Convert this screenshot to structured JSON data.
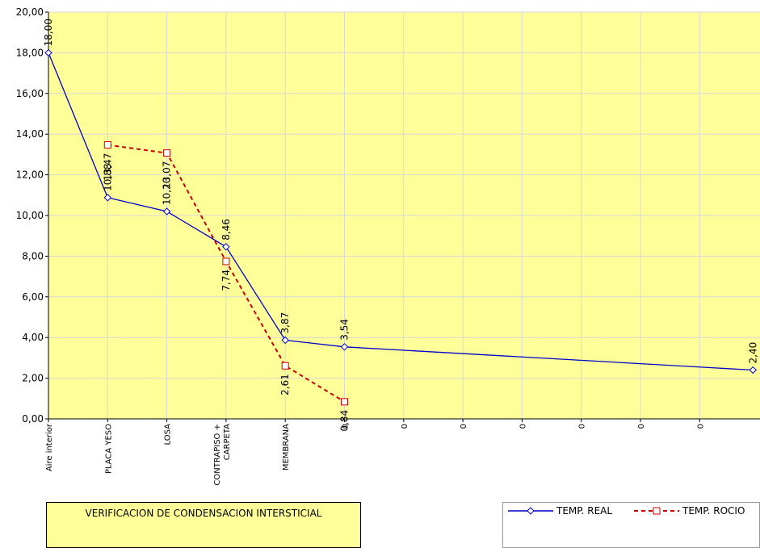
{
  "chart_data": {
    "type": "line",
    "title": "VERIFICACION DE CONDENSACION INTERSTICIAL",
    "ylim": [
      0,
      20
    ],
    "yticks": [
      "0,00",
      "2,00",
      "4,00",
      "6,00",
      "8,00",
      "10,00",
      "12,00",
      "14,00",
      "16,00",
      "18,00",
      "20,00"
    ],
    "categories": [
      "Aire interior",
      "PLACA YESO",
      "LOSA",
      "CONTRAPISO + CARPETA",
      "MEMBRANA",
      "0",
      "0",
      "0",
      "0",
      "0",
      "0",
      "0"
    ],
    "series": [
      {
        "name": "TEMP. REAL",
        "color": "#0000cc",
        "marker": "diamond",
        "dash": "solid",
        "points": [
          {
            "x": 0,
            "y": 18.0,
            "label": "18,00"
          },
          {
            "x": 1,
            "y": 10.88,
            "label": "10,88"
          },
          {
            "x": 2,
            "y": 10.2,
            "label": "10,20"
          },
          {
            "x": 3,
            "y": 8.46,
            "label": "8,46"
          },
          {
            "x": 4,
            "y": 3.87,
            "label": "3,87"
          },
          {
            "x": 5,
            "y": 3.54,
            "label": "3,54"
          },
          {
            "x": 11.9,
            "y": 2.4,
            "label": "2,40"
          }
        ]
      },
      {
        "name": "TEMP. ROCIO",
        "color": "#cc0000",
        "marker": "square",
        "dash": "dashed",
        "points": [
          {
            "x": 1,
            "y": 13.47,
            "label": "13,47"
          },
          {
            "x": 2,
            "y": 13.07,
            "label": "13,07"
          },
          {
            "x": 3,
            "y": 7.74,
            "label": "7,74"
          },
          {
            "x": 4,
            "y": 2.61,
            "label": "2,61"
          },
          {
            "x": 5,
            "y": 0.84,
            "label": "0,84"
          }
        ]
      }
    ],
    "legend": {
      "position": "bottom-right"
    },
    "grid": true,
    "plot_background": "#ffff99",
    "title_box_background": "#ffff99"
  }
}
